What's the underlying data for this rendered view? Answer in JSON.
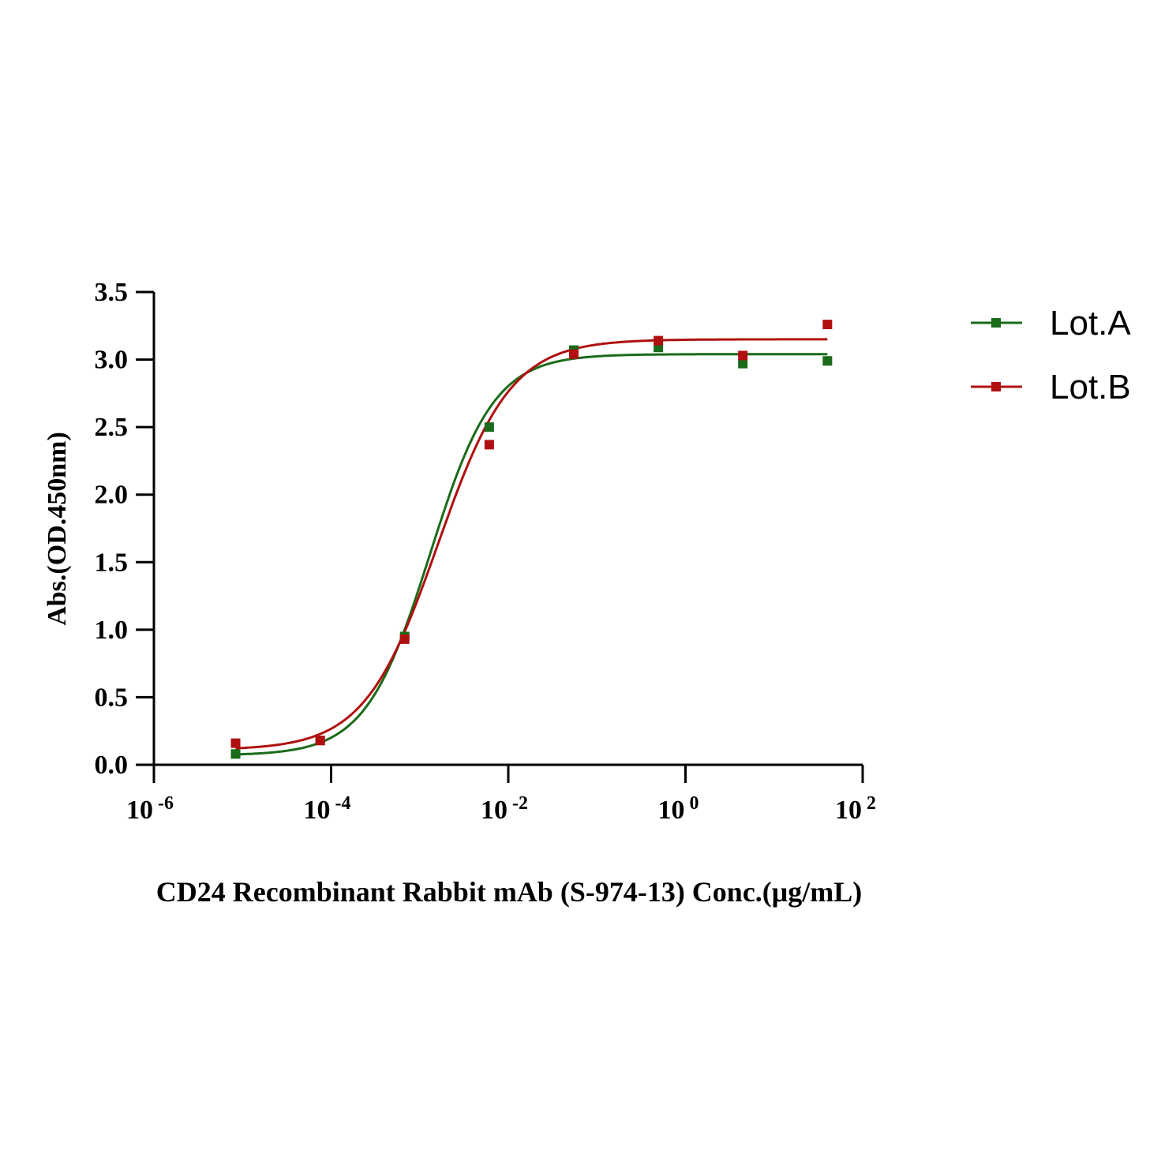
{
  "chart_data": {
    "type": "scatter",
    "xscale": "log",
    "xlabel": "CD24 Recombinant Rabbit mAb (S-974-13) Conc.(μg/mL)",
    "ylabel": "Abs.(OD.450nm)",
    "xlim": [
      1e-06,
      100
    ],
    "ylim": [
      0,
      3.5
    ],
    "xticks": [
      {
        "base": "10",
        "exp": "-6",
        "value": -6
      },
      {
        "base": "10",
        "exp": "-4",
        "value": -4
      },
      {
        "base": "10",
        "exp": "-2",
        "value": -2
      },
      {
        "base": "10",
        "exp": "0",
        "value": 0
      },
      {
        "base": "10",
        "exp": "2",
        "value": 2
      }
    ],
    "yticks": [
      "0.0",
      "0.5",
      "1.0",
      "1.5",
      "2.0",
      "2.5",
      "3.0",
      "3.5"
    ],
    "grid": false,
    "legend_position": "top-right",
    "x": [
      8.36e-06,
      7.53e-05,
      0.000677,
      0.0061,
      0.0549,
      0.494,
      4.44,
      40
    ],
    "series": [
      {
        "name": "Lot.A",
        "color": "#1a6b1a",
        "values": [
          0.08,
          0.18,
          0.95,
          2.5,
          3.07,
          3.09,
          2.97,
          2.99
        ],
        "fit": {
          "bottom": 0.07,
          "top": 3.04,
          "ec50": 0.0013,
          "hill": 1.2
        }
      },
      {
        "name": "Lot.B",
        "color": "#b01010",
        "values": [
          0.16,
          0.18,
          0.93,
          2.37,
          3.04,
          3.14,
          3.03,
          3.26
        ],
        "fit": {
          "bottom": 0.11,
          "top": 3.15,
          "ec50": 0.0016,
          "hill": 1.05
        }
      }
    ]
  }
}
